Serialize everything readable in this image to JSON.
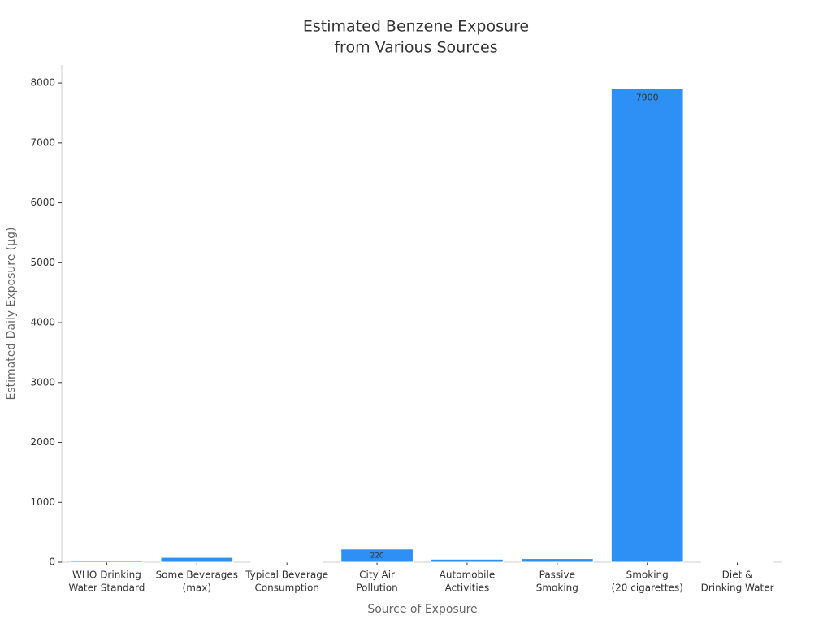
{
  "chart_data": {
    "type": "bar",
    "title": [
      "Estimated Benzene Exposure",
      "from Various Sources"
    ],
    "x_label": "Source of Exposure",
    "y_label": "Estimated Daily Exposure (µg)",
    "categories": [
      [
        "WHO Drinking",
        "Water Standard"
      ],
      [
        "Some Beverages",
        "(max)"
      ],
      [
        "Typical Beverage",
        "Consumption"
      ],
      [
        "City Air",
        "Pollution"
      ],
      [
        "Automobile",
        "Activities"
      ],
      [
        "Passive",
        "Smoking"
      ],
      [
        "Smoking",
        "(20 cigarettes)"
      ],
      [
        "Diet &",
        "Drinking Water"
      ]
    ],
    "values": [
      20,
      80,
      10,
      220,
      50,
      60,
      7900,
      10
    ],
    "value_labels": [
      null,
      null,
      null,
      "220",
      null,
      null,
      "7900",
      null
    ],
    "color": "#2e8ff5",
    "ylim": [
      0,
      8300
    ],
    "yticks": [
      0,
      1000,
      2000,
      3000,
      4000,
      5000,
      6000,
      7000,
      8000
    ],
    "grid": false
  }
}
